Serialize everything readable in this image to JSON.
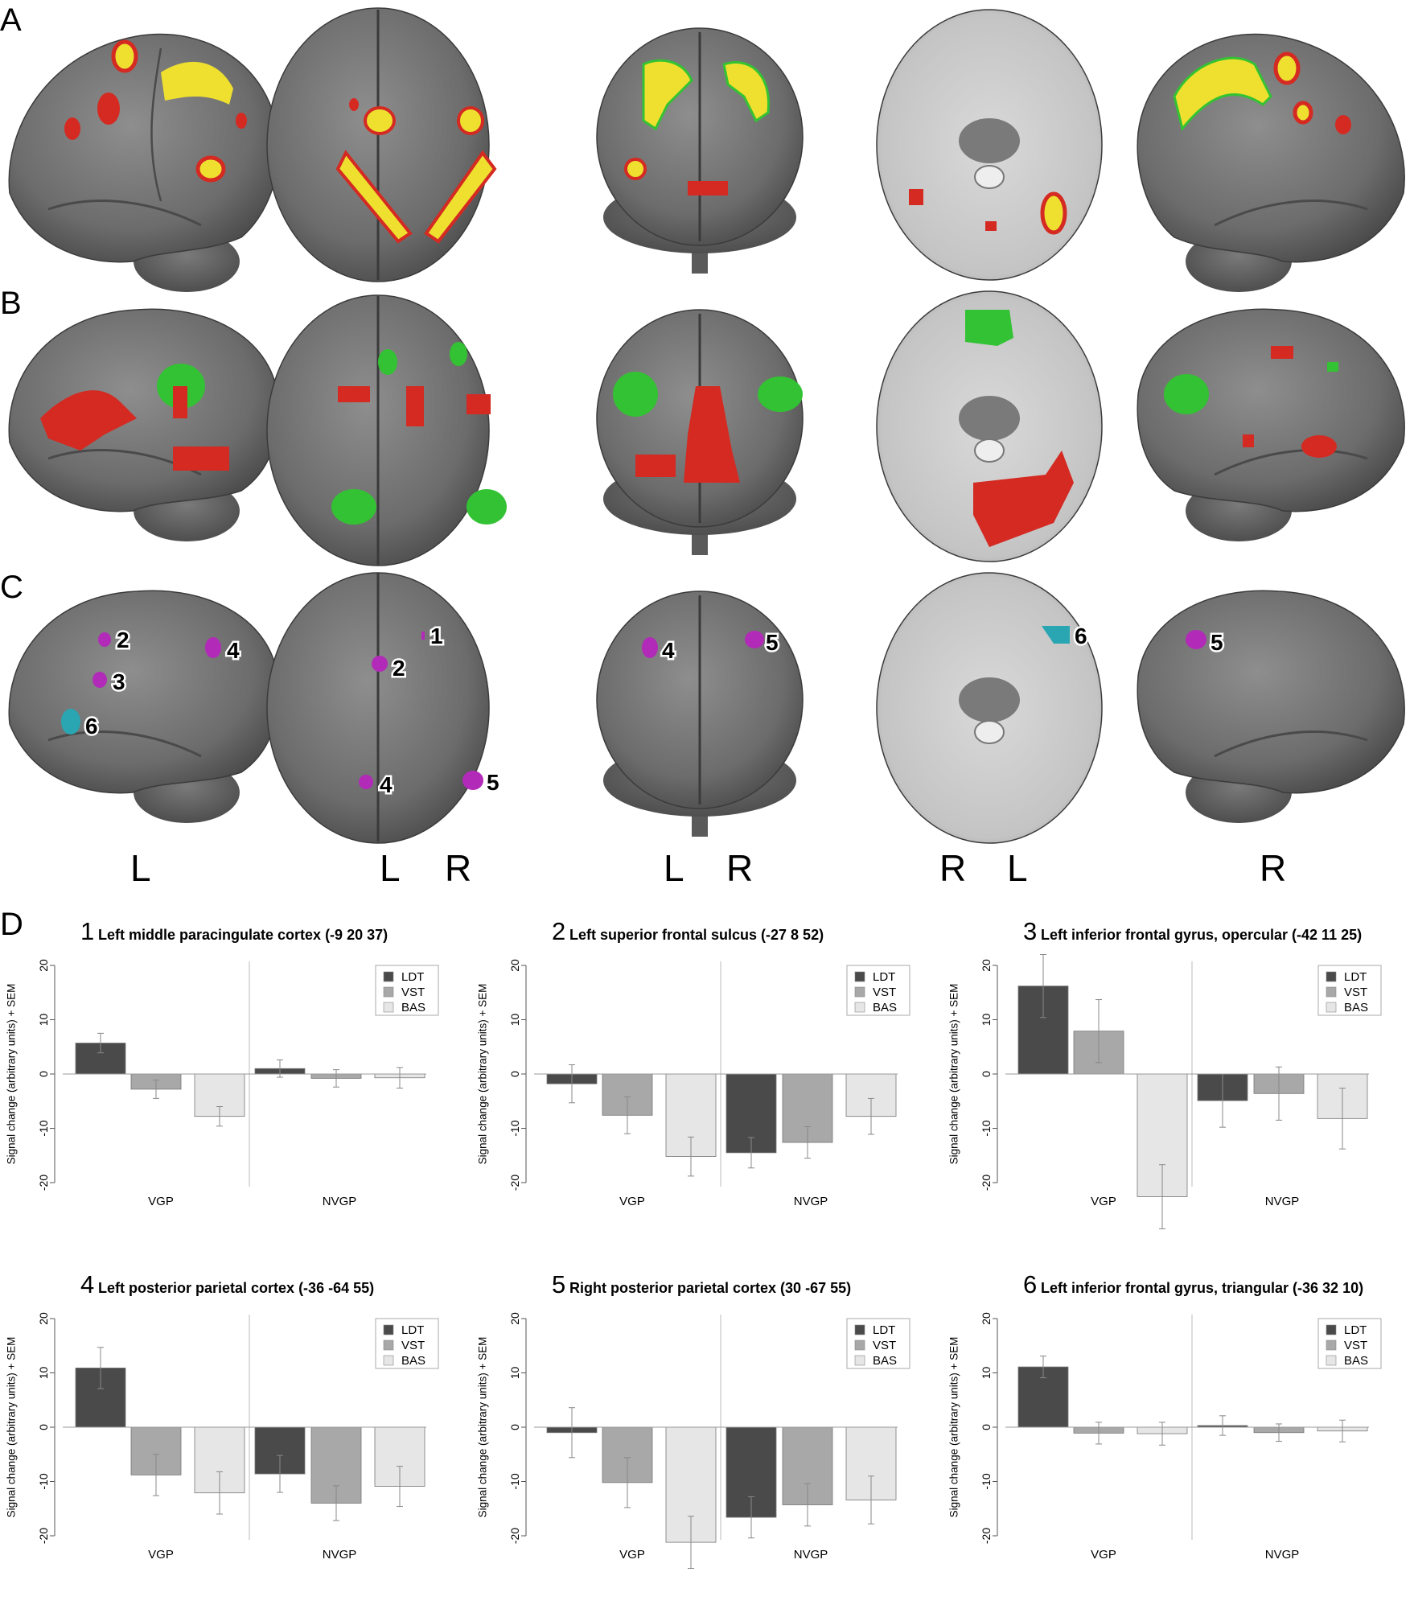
{
  "panel_labels": [
    "A",
    "B",
    "C",
    "D"
  ],
  "orientation_labels": [
    "L",
    "L",
    "R",
    "L",
    "R",
    "R",
    "L",
    "R"
  ],
  "region_numbers": {
    "lateral_left": [
      "2",
      "3",
      "4",
      "6"
    ],
    "dorsal": [
      "1",
      "2",
      "4",
      "5"
    ],
    "posterior": [
      "4",
      "5"
    ],
    "ventral": [
      "6"
    ],
    "lateral_right": [
      "5"
    ]
  },
  "colors": {
    "activation_red": "#d42a22",
    "activation_yellow": "#efe030",
    "activation_green": "#33c233",
    "roi_purple": "#b22ab8",
    "roi_cyan": "#2aa6b2",
    "LDT": "#4a4a4a",
    "VST": "#a8a8a8",
    "BAS": "#e6e6e6"
  },
  "chart_data": [
    {
      "type": "bar",
      "number": "1",
      "title": "Left middle paracingulate cortex (-9 20 37)",
      "ylabel": "Signal change (arbitrary units) + SEM",
      "ylim": [
        -20,
        20
      ],
      "yticks": [
        "20",
        "10",
        "0",
        "-10",
        "-20"
      ],
      "categories": [
        "VGP",
        "NVGP"
      ],
      "series": [
        {
          "name": "LDT",
          "values": [
            5.7,
            1.0
          ],
          "sem": [
            1.8,
            1.6
          ]
        },
        {
          "name": "VST",
          "values": [
            -2.8,
            -0.8
          ],
          "sem": [
            1.7,
            1.6
          ]
        },
        {
          "name": "BAS",
          "values": [
            -7.8,
            -0.7
          ],
          "sem": [
            1.8,
            1.9
          ]
        }
      ],
      "legend": "top-right"
    },
    {
      "type": "bar",
      "number": "2",
      "title": "Left superior frontal sulcus (-27 8 52)",
      "ylabel": "Signal change (arbitrary units) + SEM",
      "ylim": [
        -20,
        20
      ],
      "yticks": [
        "20",
        "10",
        "0",
        "-10",
        "-20"
      ],
      "categories": [
        "VGP",
        "NVGP"
      ],
      "series": [
        {
          "name": "LDT",
          "values": [
            -1.8,
            -14.5
          ],
          "sem": [
            3.5,
            2.8
          ]
        },
        {
          "name": "VST",
          "values": [
            -7.6,
            -12.6
          ],
          "sem": [
            3.4,
            2.9
          ]
        },
        {
          "name": "BAS",
          "values": [
            -15.2,
            -7.8
          ],
          "sem": [
            3.6,
            3.3
          ]
        }
      ],
      "legend": "top-right"
    },
    {
      "type": "bar",
      "number": "3",
      "title": "Left inferior frontal gyrus, opercular (-42 11 25)",
      "ylabel": "Signal change (arbitrary units) + SEM",
      "ylim": [
        -20,
        20
      ],
      "yticks": [
        "20",
        "10",
        "0",
        "-10",
        "-20"
      ],
      "categories": [
        "VGP",
        "NVGP"
      ],
      "series": [
        {
          "name": "LDT",
          "values": [
            16.2,
            -4.9
          ],
          "sem": [
            5.8,
            4.9
          ]
        },
        {
          "name": "VST",
          "values": [
            7.9,
            -3.6
          ],
          "sem": [
            5.8,
            4.9
          ]
        },
        {
          "name": "BAS",
          "values": [
            -22.6,
            -8.2
          ],
          "sem": [
            5.9,
            5.6
          ]
        }
      ],
      "legend": "top-right"
    },
    {
      "type": "bar",
      "number": "4",
      "title": "Left posterior parietal cortex (-36 -64 55)",
      "ylabel": "Signal change (arbitrary units) + SEM",
      "ylim": [
        -20,
        20
      ],
      "yticks": [
        "20",
        "10",
        "0",
        "-10",
        "-20"
      ],
      "categories": [
        "VGP",
        "NVGP"
      ],
      "series": [
        {
          "name": "LDT",
          "values": [
            10.9,
            -8.6
          ],
          "sem": [
            3.8,
            3.4
          ]
        },
        {
          "name": "VST",
          "values": [
            -8.8,
            -14.0
          ],
          "sem": [
            3.8,
            3.2
          ]
        },
        {
          "name": "BAS",
          "values": [
            -12.1,
            -10.9
          ],
          "sem": [
            3.9,
            3.7
          ]
        }
      ],
      "legend": "top-right"
    },
    {
      "type": "bar",
      "number": "5",
      "title": "Right posterior parietal cortex (30 -67 55)",
      "ylabel": "Signal change (arbitrary units) + SEM",
      "ylim": [
        -20,
        20
      ],
      "yticks": [
        "20",
        "10",
        "0",
        "-10",
        "-20"
      ],
      "categories": [
        "VGP",
        "NVGP"
      ],
      "series": [
        {
          "name": "LDT",
          "values": [
            -1.0,
            -16.6
          ],
          "sem": [
            4.6,
            3.8
          ]
        },
        {
          "name": "VST",
          "values": [
            -10.2,
            -14.3
          ],
          "sem": [
            4.6,
            3.9
          ]
        },
        {
          "name": "BAS",
          "values": [
            -21.2,
            -13.4
          ],
          "sem": [
            4.8,
            4.4
          ]
        }
      ],
      "legend": "top-right"
    },
    {
      "type": "bar",
      "number": "6",
      "title": "Left inferior frontal gyrus, triangular (-36 32 10)",
      "ylabel": "Signal change (arbitrary units) + SEM",
      "ylim": [
        -20,
        20
      ],
      "yticks": [
        "20",
        "10",
        "0",
        "-10",
        "-20"
      ],
      "categories": [
        "VGP",
        "NVGP"
      ],
      "series": [
        {
          "name": "LDT",
          "values": [
            11.1,
            0.3
          ],
          "sem": [
            2.0,
            1.8
          ]
        },
        {
          "name": "VST",
          "values": [
            -1.1,
            -1.0
          ],
          "sem": [
            2.0,
            1.6
          ]
        },
        {
          "name": "BAS",
          "values": [
            -1.2,
            -0.7
          ],
          "sem": [
            2.1,
            2.0
          ]
        }
      ],
      "legend": "top-right"
    }
  ]
}
